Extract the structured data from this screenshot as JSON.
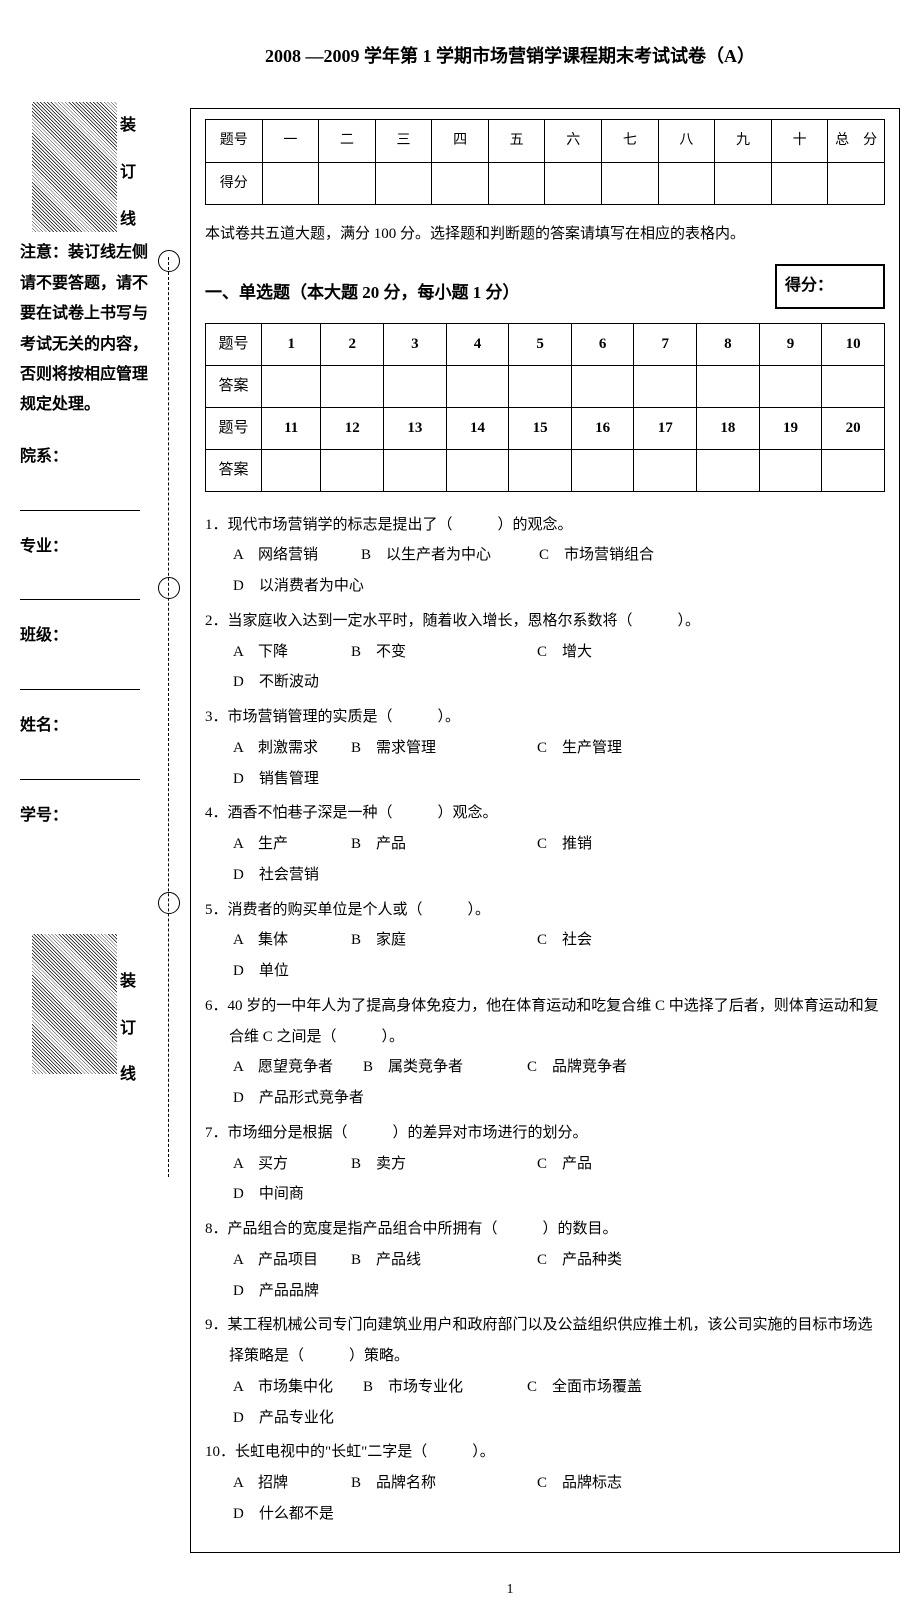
{
  "title": "2008 —2009 学年第 1 学期市场营销学课程期末考试试卷（A）",
  "score_table_headers": [
    "题号",
    "一",
    "二",
    "三",
    "四",
    "五",
    "六",
    "七",
    "八",
    "九",
    "十",
    "总　分"
  ],
  "score_row_label": "得分",
  "instruction": "本试卷共五道大题，满分 100 分。选择题和判断题的答案请填写在相应的表格内。",
  "section1_title": "一、单选题（本大题 20 分，每小题 1 分）",
  "score_box_label": "得分：",
  "answer_row1_label": "题号",
  "answer_row1": [
    "1",
    "2",
    "3",
    "4",
    "5",
    "6",
    "7",
    "8",
    "9",
    "10"
  ],
  "answer_row2_label": "答案",
  "answer_row3": [
    "11",
    "12",
    "13",
    "14",
    "15",
    "16",
    "17",
    "18",
    "19",
    "20"
  ],
  "binding_label": [
    "装",
    "订",
    "线"
  ],
  "notice_text": "注意：装订线左侧请不要答题，请不要在试卷上书写与考试无关的内容，否则将按相应管理规定处理。",
  "fields": [
    "院系：",
    "专业：",
    "班级：",
    "姓名：",
    "学号："
  ],
  "questions": [
    {
      "n": "1．",
      "stem": "现代市场营销学的标志是提出了（　　　）的观念。",
      "opts": [
        [
          "A",
          "网络营销"
        ],
        [
          "B",
          "以生产者为中心"
        ],
        [
          "C",
          "市场营销组合"
        ],
        [
          "D",
          "以消费者为中心"
        ]
      ],
      "layout": "custom1"
    },
    {
      "n": "2．",
      "stem": "当家庭收入达到一定水平时，随着收入增长，恩格尔系数将（　　　）。",
      "opts": [
        [
          "A",
          "下降"
        ],
        [
          "B",
          "不变"
        ],
        [
          "C",
          "增大"
        ],
        [
          "D",
          "不断波动"
        ]
      ],
      "layout": "std"
    },
    {
      "n": "3．",
      "stem": "市场营销管理的实质是（　　　）。",
      "opts": [
        [
          "A",
          "刺激需求"
        ],
        [
          "B",
          "需求管理"
        ],
        [
          "C",
          "生产管理"
        ],
        [
          "D",
          "销售管理"
        ]
      ],
      "layout": "std"
    },
    {
      "n": "4．",
      "stem": "酒香不怕巷子深是一种（　　　）观念。",
      "opts": [
        [
          "A",
          "生产"
        ],
        [
          "B",
          "产品"
        ],
        [
          "C",
          "推销"
        ],
        [
          "D",
          "社会营销"
        ]
      ],
      "layout": "std"
    },
    {
      "n": "5．",
      "stem": "消费者的购买单位是个人或（　　　）。",
      "opts": [
        [
          "A",
          "集体"
        ],
        [
          "B",
          "家庭"
        ],
        [
          "C",
          "社会"
        ],
        [
          "D",
          "单位"
        ]
      ],
      "layout": "std"
    },
    {
      "n": "6．",
      "stem": "40 岁的一中年人为了提高身体免疫力，他在体育运动和吃复合维 C 中选择了后者，则体育运动和复合维 C 之间是（　　　）。",
      "opts": [
        [
          "A",
          "愿望竞争者"
        ],
        [
          "B",
          "属类竞争者"
        ],
        [
          "C",
          "品牌竞争者"
        ],
        [
          "D",
          "产品形式竞争者"
        ]
      ],
      "layout": "std2",
      "indent": true
    },
    {
      "n": "7．",
      "stem": "市场细分是根据（　　　）的差异对市场进行的划分。",
      "opts": [
        [
          "A",
          "买方"
        ],
        [
          "B",
          "卖方"
        ],
        [
          "C",
          "产品"
        ],
        [
          "D",
          "中间商"
        ]
      ],
      "layout": "std"
    },
    {
      "n": "8．",
      "stem": "产品组合的宽度是指产品组合中所拥有（　　　）的数目。",
      "opts": [
        [
          "A",
          "产品项目"
        ],
        [
          "B",
          "产品线"
        ],
        [
          "C",
          "产品种类"
        ],
        [
          "D",
          "产品品牌"
        ]
      ],
      "layout": "std"
    },
    {
      "n": "9．",
      "stem": "某工程机械公司专门向建筑业用户和政府部门以及公益组织供应推土机，该公司实施的目标市场选择策略是（　　　）策略。",
      "opts": [
        [
          "A",
          "市场集中化"
        ],
        [
          "B",
          "市场专业化"
        ],
        [
          "C",
          "全面市场覆盖"
        ],
        [
          "D",
          "产品专业化"
        ]
      ],
      "layout": "std2",
      "indent": true
    },
    {
      "n": "10．",
      "stem": "长虹电视中的\"长虹\"二字是（　　　）。",
      "opts": [
        [
          "A",
          "招牌"
        ],
        [
          "B",
          "品牌名称"
        ],
        [
          "C",
          "品牌标志"
        ],
        [
          "D",
          "什么都不是"
        ]
      ],
      "layout": "std"
    }
  ],
  "page_number": "1",
  "colors": {
    "text": "#000000",
    "bg": "#ffffff",
    "border": "#000000"
  }
}
